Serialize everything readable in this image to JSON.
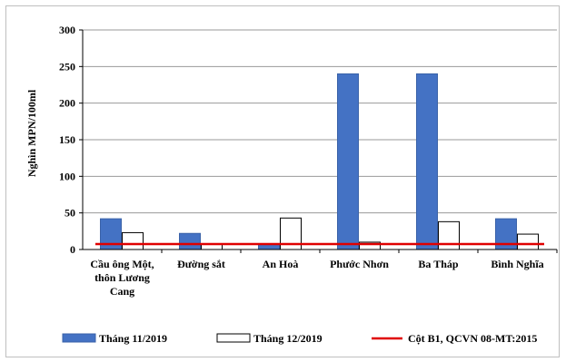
{
  "chart_data": {
    "type": "bar",
    "ylabel": "Nghìn MPN/100ml",
    "ylim": [
      0,
      300
    ],
    "yticks": [
      "0",
      "50",
      "100",
      "150",
      "200",
      "250",
      "300"
    ],
    "categories": [
      [
        "Cầu ông Một,",
        "thôn Lương",
        "Cang"
      ],
      [
        "Đường sắt"
      ],
      [
        "An Hoà"
      ],
      [
        "Phước Nhơn"
      ],
      [
        "Ba Tháp"
      ],
      [
        "Bình Nghĩa"
      ]
    ],
    "series": [
      {
        "name": "Tháng 11/2019",
        "kind": "bar",
        "color": "#4472c4",
        "values": [
          42,
          22,
          8,
          240,
          240,
          42
        ]
      },
      {
        "name": "Tháng 12/2019",
        "kind": "bar",
        "color": "#ffffff",
        "values": [
          23,
          7,
          43,
          10,
          38,
          21
        ]
      },
      {
        "name": "Cột B1, QCVN 08-MT:2015",
        "kind": "line",
        "color": "#e00000",
        "value": 7.5
      }
    ],
    "grid": true,
    "legend_position": "bottom"
  }
}
